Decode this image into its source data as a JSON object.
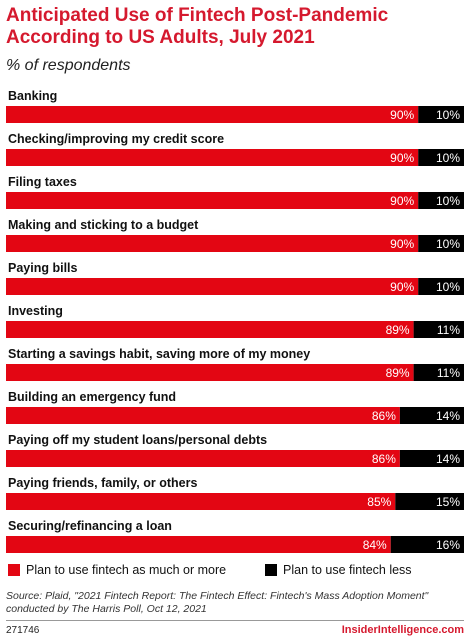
{
  "header": {
    "title": "Anticipated Use of Fintech Post-Pandemic According to US Adults, July 2021",
    "subtitle": "% of respondents"
  },
  "colors": {
    "accent": "#e30613",
    "secondary": "#000000",
    "title": "#d5192e"
  },
  "chart_data": {
    "type": "bar",
    "orientation": "horizontal",
    "stacked": true,
    "categories": [
      "Banking",
      "Checking/improving my credit score",
      "Filing taxes",
      "Making and sticking to a budget",
      "Paying bills",
      "Investing",
      "Starting a savings habit, saving more of my money",
      "Building an emergency fund",
      "Paying off my student loans/personal debts",
      "Paying friends, family, or others",
      "Securing/refinancing a loan"
    ],
    "series": [
      {
        "name": "Plan to use fintech as much or more",
        "color": "#e30613",
        "values": [
          90,
          90,
          90,
          90,
          90,
          89,
          89,
          86,
          86,
          85,
          84
        ],
        "labels": [
          "90%",
          "90%",
          "90%",
          "90%",
          "90%",
          "89%",
          "89%",
          "86%",
          "86%",
          "85%",
          "84%"
        ]
      },
      {
        "name": "Plan to use fintech less",
        "color": "#000000",
        "values": [
          10,
          10,
          10,
          10,
          10,
          11,
          11,
          14,
          14,
          15,
          16
        ],
        "labels": [
          "10%",
          "10%",
          "10%",
          "10%",
          "10%",
          "11%",
          "11%",
          "14%",
          "14%",
          "15%",
          "16%"
        ]
      }
    ],
    "xlim": [
      0,
      100
    ],
    "legend_position": "bottom",
    "grid": false
  },
  "footer": {
    "source": "Source: Plaid, \"2021 Fintech Report: The Fintech Effect: Fintech's Mass Adoption Moment\" conducted by The Harris Poll, Oct 12, 2021",
    "chart_id": "271746",
    "brand": "InsiderIntelligence.com"
  }
}
